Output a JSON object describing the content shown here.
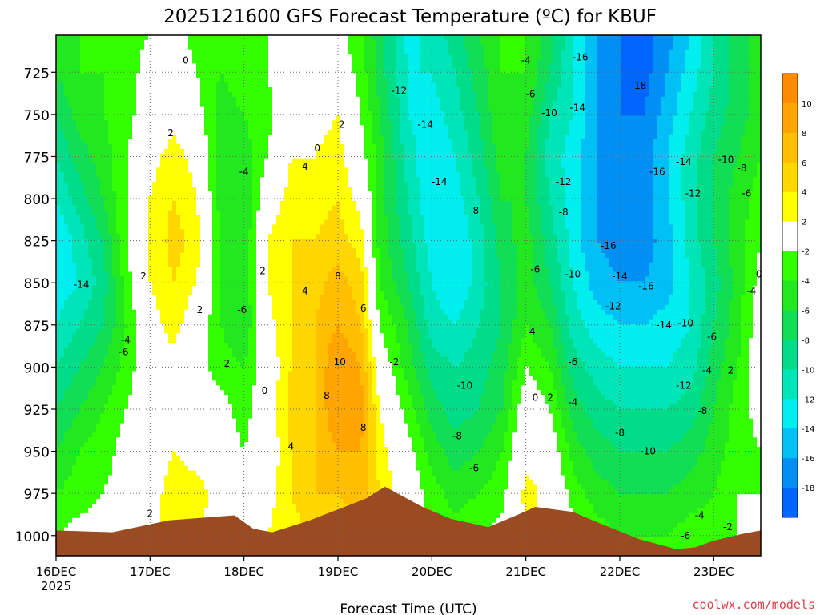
{
  "chart_data": {
    "type": "heatmap",
    "title": "2025121600 GFS Forecast Temperature (ºC) for KBUF",
    "xlabel": "Forecast Time (UTC)",
    "ylabel": "",
    "credit": "coolwx.com/models",
    "x_ticks": [
      {
        "label": "16DEC",
        "sublabel": "2025",
        "day": 0
      },
      {
        "label": "17DEC",
        "day": 1
      },
      {
        "label": "18DEC",
        "day": 2
      },
      {
        "label": "19DEC",
        "day": 3
      },
      {
        "label": "20DEC",
        "day": 4
      },
      {
        "label": "21DEC",
        "day": 5
      },
      {
        "label": "22DEC",
        "day": 6
      },
      {
        "label": "23DEC",
        "day": 7
      }
    ],
    "xlim_days": [
      0,
      7.5
    ],
    "y_ticks": [
      725,
      750,
      775,
      800,
      825,
      850,
      875,
      900,
      925,
      950,
      975,
      1000
    ],
    "ylim_hpa": [
      1012,
      703
    ],
    "grid": true,
    "colorbar": {
      "labels": [
        10,
        8,
        6,
        4,
        2,
        -2,
        -4,
        -6,
        -8,
        -10,
        -12,
        -14,
        -16,
        -18
      ],
      "bins": [
        {
          "min": 10,
          "max": 12,
          "color": "#ff8c00"
        },
        {
          "min": 8,
          "max": 10,
          "color": "#ffa500"
        },
        {
          "min": 6,
          "max": 8,
          "color": "#ffbf00"
        },
        {
          "min": 4,
          "max": 6,
          "color": "#ffd700"
        },
        {
          "min": 2,
          "max": 4,
          "color": "#ffff00"
        },
        {
          "min": -2,
          "max": 2,
          "color": "#ffffff"
        },
        {
          "min": -4,
          "max": -2,
          "color": "#33ff00"
        },
        {
          "min": -6,
          "max": -4,
          "color": "#22e820"
        },
        {
          "min": -8,
          "max": -6,
          "color": "#11dd55"
        },
        {
          "min": -10,
          "max": -8,
          "color": "#00dd88"
        },
        {
          "min": -12,
          "max": -10,
          "color": "#00e5b8"
        },
        {
          "min": -14,
          "max": -12,
          "color": "#00eeee"
        },
        {
          "min": -16,
          "max": -14,
          "color": "#00c0f5"
        },
        {
          "min": -18,
          "max": -16,
          "color": "#0090f5"
        },
        {
          "min": -20,
          "max": -18,
          "color": "#0066ff"
        }
      ]
    },
    "terrain_color": "#9b4b22",
    "surface_pressure": [
      {
        "day": 0.0,
        "p": 997
      },
      {
        "day": 0.6,
        "p": 998
      },
      {
        "day": 1.2,
        "p": 991
      },
      {
        "day": 1.9,
        "p": 988
      },
      {
        "day": 2.1,
        "p": 996
      },
      {
        "day": 2.3,
        "p": 998
      },
      {
        "day": 2.7,
        "p": 991
      },
      {
        "day": 3.3,
        "p": 978
      },
      {
        "day": 3.5,
        "p": 971
      },
      {
        "day": 3.9,
        "p": 983
      },
      {
        "day": 4.2,
        "p": 990
      },
      {
        "day": 4.6,
        "p": 995
      },
      {
        "day": 4.9,
        "p": 988
      },
      {
        "day": 5.1,
        "p": 983
      },
      {
        "day": 5.5,
        "p": 986
      },
      {
        "day": 5.8,
        "p": 993
      },
      {
        "day": 6.2,
        "p": 1002
      },
      {
        "day": 6.6,
        "p": 1008
      },
      {
        "day": 6.8,
        "p": 1007
      },
      {
        "day": 7.0,
        "p": 1003
      },
      {
        "day": 7.3,
        "p": 999
      },
      {
        "day": 7.5,
        "p": 997
      }
    ],
    "cross_section": {
      "pressure_levels": [
        1000,
        975,
        950,
        925,
        900,
        875,
        850,
        825,
        800,
        775,
        750,
        725,
        700
      ],
      "columns": [
        {
          "day": 0.0,
          "t": [
            -2,
            -4,
            -6,
            -8,
            -10,
            -12,
            -13,
            -14,
            -12,
            -10,
            -8,
            -6,
            -6
          ]
        },
        {
          "day": 0.25,
          "t": [
            -1,
            -3,
            -4,
            -6,
            -8,
            -10,
            -12,
            -11,
            -9,
            -7,
            -5,
            -4,
            -4
          ]
        },
        {
          "day": 0.5,
          "t": [
            -1,
            -2,
            -3,
            -4,
            -6,
            -8,
            -9,
            -8,
            -6,
            -5,
            -4,
            -4,
            -4
          ]
        },
        {
          "day": 0.75,
          "t": [
            0,
            -1,
            -1,
            -2,
            -3,
            -4,
            -3,
            -2,
            -2,
            -2,
            -3,
            -3,
            -3
          ]
        },
        {
          "day": 1.0,
          "t": [
            1,
            1,
            0,
            0,
            0,
            1,
            2,
            2,
            2,
            1,
            0,
            -1,
            -2
          ]
        },
        {
          "day": 1.25,
          "t": [
            3,
            3,
            2,
            1,
            1,
            3,
            4,
            5,
            4,
            3,
            1,
            0,
            -1
          ]
        },
        {
          "day": 1.5,
          "t": [
            2,
            3,
            1,
            0,
            -1,
            0,
            2,
            3,
            2,
            1,
            -1,
            -2,
            -3
          ]
        },
        {
          "day": 1.75,
          "t": [
            1,
            1,
            0,
            -1,
            -3,
            -4,
            -4,
            -4,
            -5,
            -5,
            -5,
            -4,
            -4
          ]
        },
        {
          "day": 2.0,
          "t": [
            1,
            -1,
            -2,
            -3,
            -4,
            -6,
            -6,
            -6,
            -6,
            -5,
            -4,
            -3,
            -3
          ]
        },
        {
          "day": 2.25,
          "t": [
            2,
            1,
            0,
            0,
            0,
            1,
            2,
            2,
            0,
            -2,
            -3,
            -2,
            -2
          ]
        },
        {
          "day": 2.5,
          "t": [
            3,
            4,
            4,
            5,
            4,
            4,
            4,
            4,
            3,
            2,
            1,
            0,
            -1
          ]
        },
        {
          "day": 2.75,
          "t": [
            4,
            6,
            6,
            6,
            6,
            6,
            5,
            4,
            3,
            2,
            1,
            0,
            -1
          ]
        },
        {
          "day": 3.0,
          "t": [
            5,
            6,
            8,
            10,
            10,
            8,
            7,
            5,
            4,
            3,
            2,
            0,
            -1
          ]
        },
        {
          "day": 3.25,
          "t": [
            4,
            7,
            8,
            9,
            8,
            6,
            5,
            3,
            1,
            -1,
            -2,
            -3,
            -4
          ]
        },
        {
          "day": 3.45,
          "t": [
            3,
            4,
            3,
            2,
            0,
            -2,
            -4,
            -5,
            -5,
            -5,
            -6,
            -7,
            -7
          ]
        },
        {
          "day": 3.75,
          "t": [
            1,
            0,
            -1,
            -3,
            -5,
            -6,
            -8,
            -9,
            -10,
            -11,
            -12,
            -12,
            -13
          ]
        },
        {
          "day": 4.0,
          "t": [
            -2,
            -3,
            -5,
            -7,
            -9,
            -11,
            -12,
            -13,
            -14,
            -14,
            -13,
            -12,
            -11
          ]
        },
        {
          "day": 4.25,
          "t": [
            -3,
            -5,
            -7,
            -9,
            -10,
            -12,
            -14,
            -14,
            -13,
            -12,
            -11,
            -10,
            -9
          ]
        },
        {
          "day": 4.5,
          "t": [
            -2,
            -4,
            -6,
            -8,
            -9,
            -10,
            -11,
            -11,
            -10,
            -9,
            -8,
            -7,
            -6
          ]
        },
        {
          "day": 4.75,
          "t": [
            -1,
            -3,
            -4,
            -6,
            -7,
            -8,
            -8,
            -7,
            -6,
            -5,
            -4,
            -4,
            -4
          ]
        },
        {
          "day": 5.0,
          "t": [
            2,
            3,
            1,
            0,
            -2,
            -4,
            -5,
            -5,
            -6,
            -6,
            -5,
            -4,
            -4
          ]
        },
        {
          "day": 5.25,
          "t": [
            1,
            1,
            0,
            -2,
            -4,
            -6,
            -8,
            -9,
            -10,
            -11,
            -10,
            -8,
            -7
          ]
        },
        {
          "day": 5.5,
          "t": [
            -1,
            -3,
            -5,
            -7,
            -9,
            -11,
            -12,
            -13,
            -13,
            -13,
            -12,
            -12,
            -12
          ]
        },
        {
          "day": 5.75,
          "t": [
            -3,
            -5,
            -7,
            -9,
            -11,
            -13,
            -15,
            -16,
            -16,
            -16,
            -16,
            -16,
            -16
          ]
        },
        {
          "day": 6.0,
          "t": [
            -4,
            -6,
            -8,
            -10,
            -12,
            -14,
            -16,
            -17,
            -18,
            -18,
            -18,
            -18,
            -18
          ]
        },
        {
          "day": 6.25,
          "t": [
            -4,
            -6,
            -8,
            -10,
            -12,
            -14,
            -16,
            -17,
            -17,
            -17,
            -18,
            -19,
            -19
          ]
        },
        {
          "day": 6.5,
          "t": [
            -4,
            -6,
            -8,
            -10,
            -12,
            -13,
            -15,
            -15,
            -14,
            -14,
            -15,
            -16,
            -17
          ]
        },
        {
          "day": 6.75,
          "t": [
            -3,
            -5,
            -7,
            -9,
            -11,
            -12,
            -12,
            -11,
            -11,
            -11,
            -12,
            -13,
            -14
          ]
        },
        {
          "day": 7.0,
          "t": [
            -3,
            -4,
            -5,
            -6,
            -7,
            -8,
            -9,
            -8,
            -8,
            -8,
            -9,
            -10,
            -10
          ]
        },
        {
          "day": 7.25,
          "t": [
            -2,
            -2,
            -3,
            -3,
            -4,
            -5,
            -5,
            -5,
            -5,
            -6,
            -7,
            -7,
            -7
          ]
        },
        {
          "day": 7.5,
          "t": [
            -2,
            -2,
            -2,
            -1,
            0,
            0,
            -1,
            -2,
            -3,
            -4,
            -5,
            -5,
            -5
          ]
        }
      ]
    },
    "contour_labels": [
      {
        "text": "0",
        "day": 1.38,
        "p": 718
      },
      {
        "text": "2",
        "day": 1.22,
        "p": 761
      },
      {
        "text": "2",
        "day": 0.93,
        "p": 846
      },
      {
        "text": "2",
        "day": 1.53,
        "p": 866
      },
      {
        "text": "-14",
        "day": 0.27,
        "p": 851
      },
      {
        "text": "-4",
        "day": 0.74,
        "p": 884
      },
      {
        "text": "-6",
        "day": 0.72,
        "p": 891
      },
      {
        "text": "-2",
        "day": 1.8,
        "p": 898
      },
      {
        "text": "-6",
        "day": 1.98,
        "p": 866
      },
      {
        "text": "-4",
        "day": 2.0,
        "p": 784
      },
      {
        "text": "2",
        "day": 2.2,
        "p": 843
      },
      {
        "text": "0",
        "day": 2.22,
        "p": 914
      },
      {
        "text": "0",
        "day": 2.78,
        "p": 770
      },
      {
        "text": "2",
        "day": 3.04,
        "p": 756
      },
      {
        "text": "4",
        "day": 2.65,
        "p": 781
      },
      {
        "text": "4",
        "day": 2.65,
        "p": 855
      },
      {
        "text": "8",
        "day": 3.0,
        "p": 846
      },
      {
        "text": "6",
        "day": 3.27,
        "p": 865
      },
      {
        "text": "10",
        "day": 3.02,
        "p": 897
      },
      {
        "text": "8",
        "day": 2.88,
        "p": 917
      },
      {
        "text": "8",
        "day": 3.27,
        "p": 936
      },
      {
        "text": "4",
        "day": 2.5,
        "p": 947
      },
      {
        "text": "2",
        "day": 1.0,
        "p": 987
      },
      {
        "text": "-2",
        "day": 3.6,
        "p": 897
      },
      {
        "text": "-12",
        "day": 3.65,
        "p": 736
      },
      {
        "text": "-14",
        "day": 3.93,
        "p": 756
      },
      {
        "text": "-14",
        "day": 4.08,
        "p": 790
      },
      {
        "text": "-8",
        "day": 4.45,
        "p": 807
      },
      {
        "text": "-10",
        "day": 4.35,
        "p": 911
      },
      {
        "text": "-8",
        "day": 4.27,
        "p": 941
      },
      {
        "text": "-6",
        "day": 4.45,
        "p": 960
      },
      {
        "text": "-4",
        "day": 5.0,
        "p": 718
      },
      {
        "text": "-6",
        "day": 5.05,
        "p": 738
      },
      {
        "text": "-10",
        "day": 5.25,
        "p": 749
      },
      {
        "text": "-6",
        "day": 5.1,
        "p": 842
      },
      {
        "text": "-4",
        "day": 5.05,
        "p": 879
      },
      {
        "text": "-8",
        "day": 5.4,
        "p": 808
      },
      {
        "text": "-12",
        "day": 5.4,
        "p": 790
      },
      {
        "text": "-10",
        "day": 5.5,
        "p": 845
      },
      {
        "text": "-6",
        "day": 5.5,
        "p": 897
      },
      {
        "text": "0",
        "day": 5.1,
        "p": 918
      },
      {
        "text": "2",
        "day": 5.26,
        "p": 918
      },
      {
        "text": "-4",
        "day": 5.5,
        "p": 921
      },
      {
        "text": "-16",
        "day": 5.58,
        "p": 716
      },
      {
        "text": "-14",
        "day": 5.55,
        "p": 746
      },
      {
        "text": "-18",
        "day": 6.2,
        "p": 733
      },
      {
        "text": "-16",
        "day": 6.4,
        "p": 784
      },
      {
        "text": "-16",
        "day": 5.88,
        "p": 828
      },
      {
        "text": "-14",
        "day": 6.0,
        "p": 846
      },
      {
        "text": "-16",
        "day": 6.28,
        "p": 852
      },
      {
        "text": "-12",
        "day": 5.93,
        "p": 864
      },
      {
        "text": "-14",
        "day": 6.47,
        "p": 875
      },
      {
        "text": "-10",
        "day": 6.7,
        "p": 874
      },
      {
        "text": "-14",
        "day": 6.68,
        "p": 778
      },
      {
        "text": "-12",
        "day": 6.78,
        "p": 797
      },
      {
        "text": "-10",
        "day": 7.13,
        "p": 777
      },
      {
        "text": "-8",
        "day": 7.3,
        "p": 782
      },
      {
        "text": "-6",
        "day": 7.35,
        "p": 797
      },
      {
        "text": "-6",
        "day": 6.98,
        "p": 882
      },
      {
        "text": "-12",
        "day": 6.68,
        "p": 911
      },
      {
        "text": "-8",
        "day": 6.88,
        "p": 926
      },
      {
        "text": "-8",
        "day": 6.0,
        "p": 939
      },
      {
        "text": "-10",
        "day": 6.3,
        "p": 950
      },
      {
        "text": "-4",
        "day": 6.93,
        "p": 902
      },
      {
        "text": "2",
        "day": 7.18,
        "p": 902
      },
      {
        "text": "0",
        "day": 7.48,
        "p": 845
      },
      {
        "text": "-4",
        "day": 7.4,
        "p": 855
      },
      {
        "text": "-4",
        "day": 6.85,
        "p": 988
      },
      {
        "text": "-6",
        "day": 6.7,
        "p": 1000
      },
      {
        "text": "-2",
        "day": 7.15,
        "p": 995
      }
    ]
  }
}
